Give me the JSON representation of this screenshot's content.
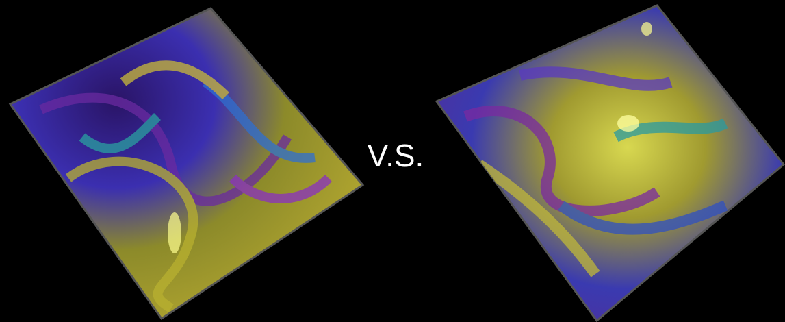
{
  "label": "V.S."
}
